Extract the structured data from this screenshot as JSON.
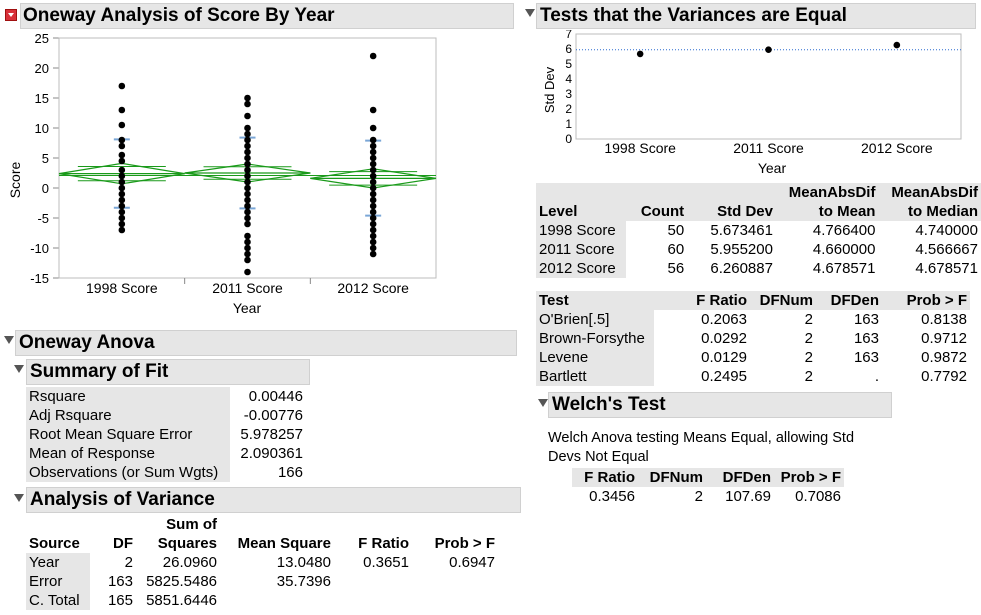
{
  "main_panel": {
    "title": "Oneway Analysis of Score By Year"
  },
  "chart_data": [
    {
      "type": "scatter",
      "title": "Oneway Analysis of Score By Year",
      "xlabel": "Year",
      "ylabel": "Score",
      "categories": [
        "1998 Score",
        "2011 Score",
        "2012 Score"
      ],
      "ylim": [
        -15,
        25
      ],
      "yticks": [
        25,
        20,
        15,
        10,
        5,
        0,
        -5,
        -10,
        -15
      ],
      "points": {
        "1998 Score": [
          17,
          13,
          10.5,
          8,
          7,
          5.5,
          4.5,
          3,
          2,
          1,
          0,
          -1,
          -2,
          -3,
          -4,
          -5,
          -6,
          -7
        ],
        "2011 Score": [
          15,
          14,
          12,
          10,
          9,
          8,
          7,
          6,
          5,
          4,
          3,
          2,
          1,
          0,
          -1,
          -2,
          -3,
          -4,
          -5,
          -6,
          -8,
          -9,
          -10,
          -11,
          -12,
          -14
        ],
        "2012 Score": [
          22,
          13,
          10,
          8,
          7,
          6,
          5,
          4,
          3,
          2,
          1,
          0,
          -1,
          -2,
          -3,
          -4,
          -5,
          -6,
          -7,
          -8,
          -9,
          -10,
          -11
        ]
      },
      "means": [
        2.4,
        2.5,
        1.6
      ],
      "ci_half": [
        1.7,
        1.5,
        1.6
      ],
      "std_dev_marks": [
        [
          8.1,
          -3.3
        ],
        [
          8.4,
          -3.4
        ],
        [
          7.9,
          -4.6
        ]
      ],
      "grand_mean": 2.09,
      "colors": {
        "diamond": "#1a9a1a",
        "sd_marks": "#7aa6d6",
        "points": "#000000"
      }
    },
    {
      "type": "scatter",
      "title": "Tests that the Variances are Equal",
      "xlabel": "Year",
      "ylabel": "Std Dev",
      "categories": [
        "1998 Score",
        "2011 Score",
        "2012 Score"
      ],
      "values": [
        5.673461,
        5.9552,
        6.260887
      ],
      "ylim": [
        0,
        7
      ],
      "yticks": [
        7,
        6,
        5,
        4,
        3,
        2,
        1,
        0
      ],
      "reference_line": 5.95,
      "colors": {
        "reference": "#2a6ad0",
        "points": "#000000"
      }
    }
  ],
  "oneway_anova": {
    "title": "Oneway Anova"
  },
  "summary_of_fit": {
    "title": "Summary of Fit",
    "rows": [
      {
        "label": "Rsquare",
        "value": "0.00446"
      },
      {
        "label": "Adj Rsquare",
        "value": "-0.00776"
      },
      {
        "label": "Root Mean Square Error",
        "value": "5.978257"
      },
      {
        "label": "Mean of Response",
        "value": "2.090361"
      },
      {
        "label": "Observations (or Sum Wgts)",
        "value": "166"
      }
    ]
  },
  "analysis_of_variance": {
    "title": "Analysis of Variance",
    "head_top": "Sum of",
    "headers": [
      "Source",
      "DF",
      "Squares",
      "Mean Square",
      "F Ratio",
      "Prob > F"
    ],
    "rows": [
      [
        "Year",
        "2",
        "26.0960",
        "13.0480",
        "0.3651",
        "0.6947"
      ],
      [
        "Error",
        "163",
        "5825.5486",
        "35.7396",
        "",
        ""
      ],
      [
        "C. Total",
        "165",
        "5851.6446",
        "",
        "",
        ""
      ]
    ]
  },
  "variances_panel": {
    "title": "Tests that the Variances are Equal"
  },
  "levels_table": {
    "headers_top": [
      "",
      "",
      "",
      "MeanAbsDif",
      "MeanAbsDif"
    ],
    "headers": [
      "Level",
      "Count",
      "Std Dev",
      "to Mean",
      "to Median"
    ],
    "rows": [
      [
        "1998 Score",
        "50",
        "5.673461",
        "4.766400",
        "4.740000"
      ],
      [
        "2011 Score",
        "60",
        "5.955200",
        "4.660000",
        "4.566667"
      ],
      [
        "2012 Score",
        "56",
        "6.260887",
        "4.678571",
        "4.678571"
      ]
    ]
  },
  "tests_table": {
    "headers": [
      "Test",
      "F Ratio",
      "DFNum",
      "DFDen",
      "Prob > F"
    ],
    "rows": [
      [
        "O'Brien[.5]",
        "0.2063",
        "2",
        "163",
        "0.8138"
      ],
      [
        "Brown-Forsythe",
        "0.0292",
        "2",
        "163",
        "0.9712"
      ],
      [
        "Levene",
        "0.0129",
        "2",
        "163",
        "0.9872"
      ],
      [
        "Bartlett",
        "0.2495",
        "2",
        ".",
        "0.7792"
      ]
    ]
  },
  "welch": {
    "title": "Welch's Test",
    "description_line1": "Welch Anova testing Means Equal, allowing Std",
    "description_line2": "Devs Not Equal",
    "headers": [
      "F Ratio",
      "DFNum",
      "DFDen",
      "Prob > F"
    ],
    "row": [
      "0.3456",
      "2",
      "107.69",
      "0.7086"
    ]
  }
}
